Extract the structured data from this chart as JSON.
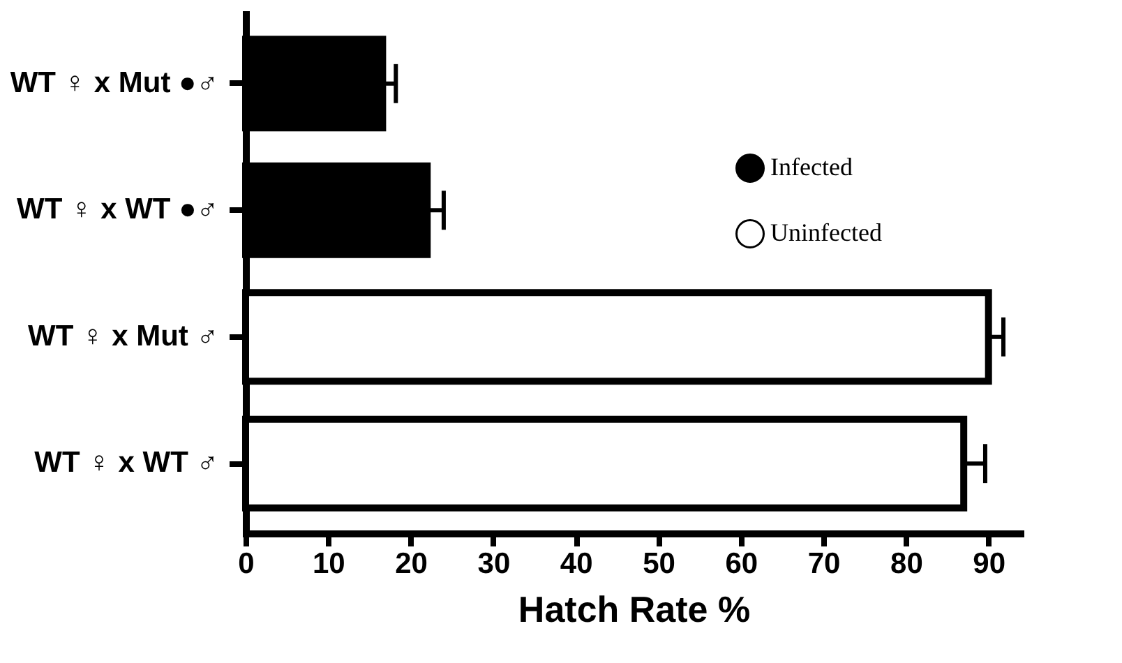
{
  "chart_data": {
    "type": "bar",
    "orientation": "horizontal",
    "xlabel": "Hatch Rate %",
    "categories": [
      "WT ♀ x Mut ●♂",
      "WT ♀ x WT ●♂",
      "WT ♀ x Mut ♂",
      "WT ♀ x WT ♂"
    ],
    "series": [
      {
        "name": "Infected",
        "color": "#000000",
        "values": [
          16.6,
          22,
          null,
          null
        ],
        "errors": [
          1.6,
          2,
          null,
          null
        ]
      },
      {
        "name": "Uninfected",
        "color": "#ffffff",
        "values": [
          null,
          null,
          90,
          87
        ],
        "errors": [
          null,
          null,
          1.8,
          2.6
        ]
      }
    ],
    "xlim": [
      0,
      94
    ],
    "xticks": [
      0,
      10,
      20,
      30,
      40,
      50,
      60,
      70,
      80,
      90
    ],
    "grid": false,
    "legend": "top right"
  }
}
